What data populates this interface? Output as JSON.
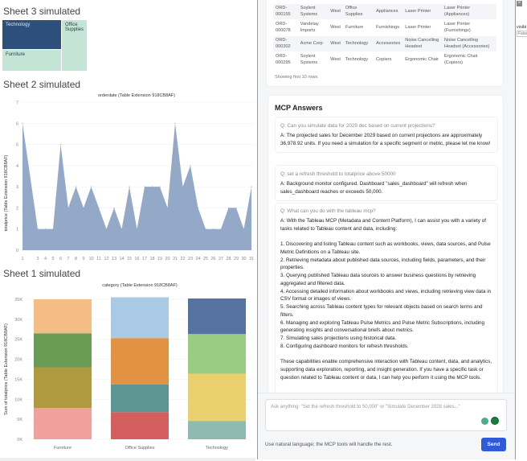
{
  "sheets": {
    "sheet3": {
      "title": "Sheet 3 simulated",
      "cells": [
        {
          "label": "Technology",
          "color": "#2d4f7c"
        },
        {
          "label": "Furniture",
          "color": "#c4e5d6"
        },
        {
          "label": "Office Supplies",
          "color": "#c4e5d6"
        }
      ]
    },
    "sheet2": {
      "title": "Sheet 2 simulated"
    },
    "sheet1": {
      "title": "Sheet 1 simulated"
    }
  },
  "chart_data": [
    {
      "type": "area",
      "title": "orderdate (Table Extension 918CB8AF)",
      "ylabel": "totalprice (Table Extension 918CB8AF)",
      "xlabel": "",
      "x": [
        1,
        3,
        4,
        5,
        6,
        7,
        8,
        9,
        10,
        11,
        12,
        13,
        14,
        15,
        16,
        17,
        18,
        19,
        20,
        21,
        22,
        23,
        24,
        25,
        26,
        27,
        28,
        29,
        30,
        31
      ],
      "y": [
        6,
        1,
        1,
        1,
        5,
        2,
        3,
        2,
        3,
        2,
        1,
        2,
        1,
        3,
        1,
        3,
        3,
        3,
        2,
        6,
        3,
        4,
        2,
        1,
        1,
        1,
        2,
        2,
        1,
        3
      ],
      "ylim": [
        0,
        7
      ],
      "yticks": [
        0,
        1,
        2,
        3,
        4,
        5,
        6,
        7
      ],
      "grid": true,
      "color": "#94a8c8"
    },
    {
      "type": "stacked-bar",
      "title": "category (Table Extension 918CB8AF)",
      "ylabel": "Sum of totalprice (Table Extension 918CB8AF)",
      "categories": [
        "Furniture",
        "Office Supplies",
        "Technology"
      ],
      "segments": [
        [
          {
            "value": 7800,
            "color": "#f0a19c"
          },
          {
            "value": 10200,
            "color": "#b09a3f"
          },
          {
            "value": 8500,
            "color": "#6a9c56"
          },
          {
            "value": 8500,
            "color": "#f3bd85"
          }
        ],
        [
          {
            "value": 6800,
            "color": "#d35f5f"
          },
          {
            "value": 6900,
            "color": "#5c9592"
          },
          {
            "value": 11600,
            "color": "#e29242"
          },
          {
            "value": 10200,
            "color": "#a9c9e4"
          }
        ],
        [
          {
            "value": 4600,
            "color": "#8fbab4"
          },
          {
            "value": 11800,
            "color": "#ead06f"
          },
          {
            "value": 9900,
            "color": "#9bcc84"
          },
          {
            "value": 8900,
            "color": "#56739f"
          }
        ]
      ],
      "ylim": [
        0,
        35000
      ],
      "yticks": [
        "0K",
        "5K",
        "10K",
        "15K",
        "20K",
        "25K",
        "30K",
        "35K"
      ],
      "grid": true
    }
  ],
  "table": {
    "rows": [
      [
        "ORD-000155",
        "Soylent Systems",
        "West",
        "Office Supplies",
        "Appliances",
        "Laser Printer",
        "Laser Printer (Appliances)"
      ],
      [
        "ORD-000078",
        "Vandelay Imports",
        "West",
        "Furniture",
        "Furnishings",
        "Laser Printer",
        "Laser Printer (Furnishings)"
      ],
      [
        "ORD-000302",
        "Acme Corp",
        "West",
        "Technology",
        "Accessories",
        "Noise Cancelling Headset",
        "Noise Cancelling Headset (Accessories)"
      ],
      [
        "ORD-000295",
        "Soylent Systems",
        "West",
        "Technology",
        "Copiers",
        "Ergonomic Chair",
        "Ergonomic Chair (Copiers)"
      ]
    ],
    "footer": "Showing first 10 rows."
  },
  "mcp": {
    "title": "MCP Answers",
    "items": [
      {
        "q": "Q: Can you simulate data for 2029 dec based on current projections?",
        "a": "A: The projected sales for December 2029 based on current projections are approximately 36,978.92 units. If you need a simulation for a specific segment or metric, please let me know!"
      },
      {
        "q": "Q: set a refresh threshold to totalprice above 50000",
        "a": "A: Background monitor configured. Dashboard \"sales_dashboard\" will refresh when sales_dashboard reaches or exceeds 50,000."
      },
      {
        "q": "Q: What can you do with the tableau mcp?",
        "a": "A: With the Tableau MCP (Metadata and Content Platform), I can assist you with a variety of tasks related to Tableau content and data, including:\n\n1. Discovering and listing Tableau content such as workbooks, views, data sources, and Pulse Metric Definitions on a Tableau site.\n2. Retrieving metadata about published data sources, including fields, parameters, and their properties.\n3. Querying published Tableau data sources to answer business questions by retrieving aggregated and filtered data.\n4. Accessing detailed information about workbooks and views, including retrieving view data in CSV format or images of views.\n5. Searching across Tableau content types for relevant objects based on search terms and filters.\n6. Managing and exploring Tableau Pulse Metrics and Pulse Metric Subscriptions, including generating insights and conversational briefs about metrics.\n7. Simulating sales projections using historical data.\n8. Configuring dashboard monitors for refresh thresholds.\n\nThese capabilities enable comprehensive interaction with Tableau content, data, and analytics, supporting data exploration, reporting, and insight generation. If you have a specific task or question related to Tableau content or data, I can help you perform it using the MCP tools."
      }
    ],
    "input_placeholder": "Ask anything: \"Set the refresh threshold to 50,000\" or \"Simulate December 2028 sales...\"",
    "hint": "Use natural language; the MCP tools will handle the rest.",
    "send": "Send",
    "accent": "#2f5bd8"
  },
  "side": {
    "label": "visibi",
    "value": "False"
  }
}
